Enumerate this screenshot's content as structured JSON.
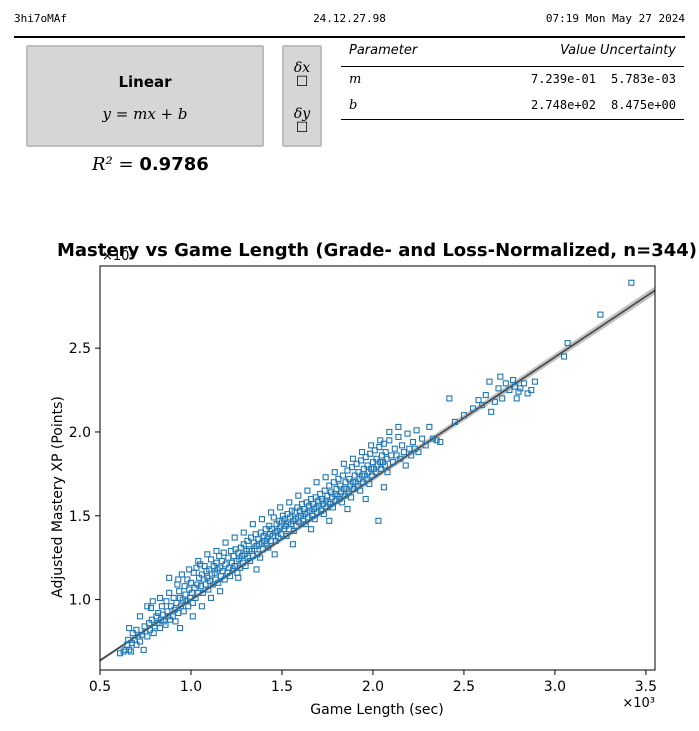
{
  "header": {
    "left": "3hi7oMAf",
    "center": "24.12.27.98",
    "right": "07:19 Mon May 27 2024"
  },
  "fit": {
    "model_name": "Linear",
    "equation": "y = mx + b",
    "uncertainty_toggles": [
      {
        "label": "δx",
        "checked": false
      },
      {
        "label": "δy",
        "checked": false
      }
    ],
    "r2_symbol": "R² =",
    "r2_value": "0.9786",
    "table": {
      "headers": [
        "Parameter",
        "Value",
        "Uncertainty"
      ],
      "rows": [
        {
          "param": "m",
          "value": "7.239e-01",
          "uncertainty": "5.783e-03"
        },
        {
          "param": "b",
          "value": "2.748e+02",
          "uncertainty": "8.475e+00"
        }
      ]
    }
  },
  "chart_data": {
    "type": "scatter",
    "title": "Mastery vs Game Length (Grade- and Loss-Normalized, n=344)",
    "xlabel": "Game Length (sec)",
    "ylabel": "Adjusted Mastery XP (Points)",
    "x_multiplier_label": "×10³",
    "y_multiplier_label": "×10³",
    "xlim": [
      500,
      3550
    ],
    "ylim": [
      580,
      2990
    ],
    "x_ticks": [
      500,
      1000,
      1500,
      2000,
      2500,
      3000,
      3500
    ],
    "x_tick_labels": [
      "0.5",
      "1.0",
      "1.5",
      "2.0",
      "2.5",
      "3.0",
      "3.5"
    ],
    "y_ticks": [
      1000,
      1500,
      2000,
      2500
    ],
    "y_tick_labels": [
      "1.0",
      "1.5",
      "2.0",
      "2.5"
    ],
    "grid": false,
    "marker": "open square",
    "point_color": "#1f77b4",
    "fit_line": {
      "slope": 0.7239,
      "intercept": 274.8,
      "color": "#444444",
      "band_color": "#9a9a9a"
    },
    "points": [
      [
        610,
        680
      ],
      [
        630,
        690
      ],
      [
        640,
        700
      ],
      [
        650,
        730
      ],
      [
        655,
        760
      ],
      [
        660,
        700
      ],
      [
        670,
        690
      ],
      [
        675,
        740
      ],
      [
        680,
        800
      ],
      [
        690,
        760
      ],
      [
        700,
        730
      ],
      [
        700,
        820
      ],
      [
        710,
        780
      ],
      [
        720,
        750
      ],
      [
        730,
        790
      ],
      [
        740,
        700
      ],
      [
        745,
        840
      ],
      [
        750,
        810
      ],
      [
        760,
        780
      ],
      [
        770,
        860
      ],
      [
        775,
        820
      ],
      [
        780,
        950
      ],
      [
        785,
        880
      ],
      [
        790,
        990
      ],
      [
        795,
        800
      ],
      [
        800,
        840
      ],
      [
        810,
        900
      ],
      [
        815,
        860
      ],
      [
        820,
        920
      ],
      [
        830,
        830
      ],
      [
        835,
        880
      ],
      [
        840,
        960
      ],
      [
        845,
        910
      ],
      [
        850,
        870
      ],
      [
        860,
        850
      ],
      [
        865,
        990
      ],
      [
        870,
        930
      ],
      [
        875,
        900
      ],
      [
        880,
        1130
      ],
      [
        885,
        880
      ],
      [
        890,
        960
      ],
      [
        900,
        900
      ],
      [
        905,
        1010
      ],
      [
        910,
        940
      ],
      [
        915,
        870
      ],
      [
        920,
        980
      ],
      [
        925,
        1090
      ],
      [
        930,
        920
      ],
      [
        935,
        1050
      ],
      [
        940,
        1010
      ],
      [
        945,
        960
      ],
      [
        950,
        1150
      ],
      [
        955,
        1000
      ],
      [
        960,
        930
      ],
      [
        965,
        1080
      ],
      [
        970,
        1030
      ],
      [
        975,
        990
      ],
      [
        980,
        1120
      ],
      [
        985,
        960
      ],
      [
        990,
        1060
      ],
      [
        995,
        1010
      ],
      [
        1000,
        1100
      ],
      [
        1005,
        1040
      ],
      [
        1010,
        980
      ],
      [
        1015,
        1160
      ],
      [
        1020,
        1070
      ],
      [
        1025,
        1010
      ],
      [
        1030,
        1190
      ],
      [
        1035,
        1090
      ],
      [
        1040,
        1040
      ],
      [
        1045,
        1130
      ],
      [
        1050,
        1210
      ],
      [
        1055,
        1080
      ],
      [
        1060,
        1150
      ],
      [
        1065,
        1040
      ],
      [
        1070,
        1120
      ],
      [
        1075,
        1200
      ],
      [
        1080,
        1090
      ],
      [
        1085,
        1170
      ],
      [
        1090,
        1130
      ],
      [
        1095,
        1060
      ],
      [
        1100,
        1180
      ],
      [
        1105,
        1110
      ],
      [
        1110,
        1240
      ],
      [
        1115,
        1150
      ],
      [
        1120,
        1090
      ],
      [
        1125,
        1200
      ],
      [
        1130,
        1160
      ],
      [
        1135,
        1120
      ],
      [
        1140,
        1220
      ],
      [
        1145,
        1180
      ],
      [
        1150,
        1100
      ],
      [
        1155,
        1260
      ],
      [
        1160,
        1190
      ],
      [
        1165,
        1140
      ],
      [
        1170,
        1230
      ],
      [
        1175,
        1170
      ],
      [
        1180,
        1280
      ],
      [
        1185,
        1120
      ],
      [
        1190,
        1210
      ],
      [
        1200,
        1160
      ],
      [
        1205,
        1250
      ],
      [
        1210,
        1190
      ],
      [
        1215,
        1140
      ],
      [
        1220,
        1290
      ],
      [
        1225,
        1220
      ],
      [
        1230,
        1180
      ],
      [
        1235,
        1260
      ],
      [
        1240,
        1200
      ],
      [
        1245,
        1300
      ],
      [
        1250,
        1230
      ],
      [
        1255,
        1160
      ],
      [
        1260,
        1280
      ],
      [
        1265,
        1240
      ],
      [
        1270,
        1190
      ],
      [
        1275,
        1310
      ],
      [
        1280,
        1260
      ],
      [
        1285,
        1220
      ],
      [
        1290,
        1330
      ],
      [
        1295,
        1270
      ],
      [
        1300,
        1200
      ],
      [
        1305,
        1290
      ],
      [
        1310,
        1350
      ],
      [
        1315,
        1250
      ],
      [
        1320,
        1300
      ],
      [
        1325,
        1230
      ],
      [
        1330,
        1370
      ],
      [
        1335,
        1290
      ],
      [
        1340,
        1260
      ],
      [
        1345,
        1340
      ],
      [
        1350,
        1300
      ],
      [
        1355,
        1390
      ],
      [
        1360,
        1320
      ],
      [
        1365,
        1270
      ],
      [
        1370,
        1360
      ],
      [
        1375,
        1330
      ],
      [
        1380,
        1250
      ],
      [
        1385,
        1400
      ],
      [
        1390,
        1340
      ],
      [
        1395,
        1300
      ],
      [
        1400,
        1380
      ],
      [
        1405,
        1350
      ],
      [
        1410,
        1420
      ],
      [
        1415,
        1330
      ],
      [
        1420,
        1370
      ],
      [
        1425,
        1310
      ],
      [
        1430,
        1440
      ],
      [
        1435,
        1390
      ],
      [
        1440,
        1350
      ],
      [
        1445,
        1420
      ],
      [
        1450,
        1380
      ],
      [
        1455,
        1490
      ],
      [
        1460,
        1400
      ],
      [
        1465,
        1350
      ],
      [
        1470,
        1450
      ],
      [
        1475,
        1410
      ],
      [
        1480,
        1370
      ],
      [
        1485,
        1470
      ],
      [
        1490,
        1430
      ],
      [
        1495,
        1390
      ],
      [
        1500,
        1460
      ],
      [
        1505,
        1500
      ],
      [
        1510,
        1420
      ],
      [
        1515,
        1480
      ],
      [
        1520,
        1440
      ],
      [
        1525,
        1380
      ],
      [
        1530,
        1510
      ],
      [
        1535,
        1460
      ],
      [
        1540,
        1420
      ],
      [
        1545,
        1490
      ],
      [
        1550,
        1450
      ],
      [
        1555,
        1530
      ],
      [
        1560,
        1470
      ],
      [
        1565,
        1410
      ],
      [
        1570,
        1520
      ],
      [
        1575,
        1480
      ],
      [
        1580,
        1440
      ],
      [
        1585,
        1550
      ],
      [
        1590,
        1490
      ],
      [
        1595,
        1460
      ],
      [
        1600,
        1530
      ],
      [
        1605,
        1500
      ],
      [
        1610,
        1570
      ],
      [
        1615,
        1470
      ],
      [
        1620,
        1540
      ],
      [
        1625,
        1510
      ],
      [
        1630,
        1450
      ],
      [
        1635,
        1580
      ],
      [
        1640,
        1520
      ],
      [
        1645,
        1490
      ],
      [
        1650,
        1560
      ],
      [
        1655,
        1530
      ],
      [
        1660,
        1600
      ],
      [
        1665,
        1500
      ],
      [
        1670,
        1570
      ],
      [
        1675,
        1540
      ],
      [
        1680,
        1480
      ],
      [
        1685,
        1610
      ],
      [
        1690,
        1550
      ],
      [
        1695,
        1520
      ],
      [
        1700,
        1590
      ],
      [
        1705,
        1560
      ],
      [
        1710,
        1630
      ],
      [
        1715,
        1530
      ],
      [
        1720,
        1600
      ],
      [
        1725,
        1570
      ],
      [
        1730,
        1510
      ],
      [
        1735,
        1650
      ],
      [
        1740,
        1590
      ],
      [
        1745,
        1550
      ],
      [
        1750,
        1620
      ],
      [
        1755,
        1580
      ],
      [
        1760,
        1680
      ],
      [
        1765,
        1570
      ],
      [
        1770,
        1640
      ],
      [
        1775,
        1610
      ],
      [
        1780,
        1550
      ],
      [
        1785,
        1700
      ],
      [
        1790,
        1630
      ],
      [
        1795,
        1590
      ],
      [
        1800,
        1660
      ],
      [
        1805,
        1620
      ],
      [
        1810,
        1720
      ],
      [
        1815,
        1600
      ],
      [
        1820,
        1680
      ],
      [
        1825,
        1640
      ],
      [
        1830,
        1580
      ],
      [
        1835,
        1740
      ],
      [
        1840,
        1660
      ],
      [
        1845,
        1620
      ],
      [
        1850,
        1700
      ],
      [
        1855,
        1660
      ],
      [
        1860,
        1770
      ],
      [
        1865,
        1640
      ],
      [
        1870,
        1720
      ],
      [
        1875,
        1680
      ],
      [
        1880,
        1610
      ],
      [
        1885,
        1790
      ],
      [
        1890,
        1700
      ],
      [
        1895,
        1660
      ],
      [
        1900,
        1740
      ],
      [
        1905,
        1700
      ],
      [
        1910,
        1810
      ],
      [
        1915,
        1680
      ],
      [
        1920,
        1760
      ],
      [
        1925,
        1720
      ],
      [
        1930,
        1650
      ],
      [
        1935,
        1830
      ],
      [
        1940,
        1740
      ],
      [
        1945,
        1700
      ],
      [
        1950,
        1780
      ],
      [
        1955,
        1740
      ],
      [
        1960,
        1850
      ],
      [
        1965,
        1720
      ],
      [
        1970,
        1800
      ],
      [
        1975,
        1760
      ],
      [
        1980,
        1690
      ],
      [
        1985,
        1870
      ],
      [
        1990,
        1780
      ],
      [
        1995,
        1740
      ],
      [
        2000,
        1820
      ],
      [
        2005,
        1780
      ],
      [
        2010,
        1890
      ],
      [
        2015,
        1760
      ],
      [
        2020,
        1840
      ],
      [
        2025,
        1800
      ],
      [
        2030,
        1470
      ],
      [
        2035,
        1910
      ],
      [
        2040,
        1820
      ],
      [
        2045,
        1780
      ],
      [
        2050,
        1860
      ],
      [
        2055,
        1820
      ],
      [
        2060,
        1930
      ],
      [
        2065,
        1800
      ],
      [
        2070,
        1880
      ],
      [
        2075,
        1840
      ],
      [
        2080,
        1760
      ],
      [
        2090,
        1950
      ],
      [
        2100,
        1860
      ],
      [
        2110,
        1820
      ],
      [
        2120,
        1900
      ],
      [
        2130,
        1860
      ],
      [
        2140,
        1970
      ],
      [
        2150,
        1840
      ],
      [
        2160,
        1920
      ],
      [
        2170,
        1880
      ],
      [
        2180,
        1800
      ],
      [
        2190,
        1990
      ],
      [
        2200,
        1900
      ],
      [
        2210,
        1860
      ],
      [
        2220,
        1940
      ],
      [
        2230,
        1900
      ],
      [
        2240,
        2010
      ],
      [
        2250,
        1880
      ],
      [
        2270,
        1960
      ],
      [
        2290,
        1920
      ],
      [
        2310,
        2030
      ],
      [
        2330,
        1960
      ],
      [
        2350,
        1950
      ],
      [
        2370,
        1940
      ],
      [
        2420,
        2200
      ],
      [
        2450,
        2060
      ],
      [
        2500,
        2100
      ],
      [
        2550,
        2140
      ],
      [
        2580,
        2190
      ],
      [
        2600,
        2160
      ],
      [
        2620,
        2220
      ],
      [
        2640,
        2300
      ],
      [
        2650,
        2120
      ],
      [
        2670,
        2180
      ],
      [
        2690,
        2260
      ],
      [
        2700,
        2330
      ],
      [
        2710,
        2200
      ],
      [
        2730,
        2290
      ],
      [
        2750,
        2250
      ],
      [
        2770,
        2310
      ],
      [
        2780,
        2270
      ],
      [
        2790,
        2200
      ],
      [
        2800,
        2240
      ],
      [
        2810,
        2260
      ],
      [
        2830,
        2290
      ],
      [
        2850,
        2230
      ],
      [
        2870,
        2250
      ],
      [
        2890,
        2300
      ],
      [
        3050,
        2450
      ],
      [
        3070,
        2530
      ],
      [
        3250,
        2700
      ],
      [
        3420,
        2890
      ],
      [
        660,
        830
      ],
      [
        720,
        900
      ],
      [
        760,
        960
      ],
      [
        830,
        1010
      ],
      [
        880,
        1040
      ],
      [
        930,
        1120
      ],
      [
        990,
        1180
      ],
      [
        1040,
        1230
      ],
      [
        1090,
        1270
      ],
      [
        1140,
        1290
      ],
      [
        1190,
        1340
      ],
      [
        1240,
        1370
      ],
      [
        1290,
        1400
      ],
      [
        1340,
        1450
      ],
      [
        1390,
        1480
      ],
      [
        1440,
        1520
      ],
      [
        1490,
        1550
      ],
      [
        1540,
        1580
      ],
      [
        1590,
        1620
      ],
      [
        1640,
        1650
      ],
      [
        1690,
        1700
      ],
      [
        1740,
        1730
      ],
      [
        1790,
        1760
      ],
      [
        1840,
        1810
      ],
      [
        1890,
        1840
      ],
      [
        1940,
        1880
      ],
      [
        1990,
        1920
      ],
      [
        2040,
        1950
      ],
      [
        2090,
        2000
      ],
      [
        2140,
        2030
      ],
      [
        1160,
        1050
      ],
      [
        1260,
        1130
      ],
      [
        1360,
        1180
      ],
      [
        1460,
        1270
      ],
      [
        1560,
        1330
      ],
      [
        1660,
        1420
      ],
      [
        1760,
        1470
      ],
      [
        1860,
        1540
      ],
      [
        1960,
        1600
      ],
      [
        2060,
        1670
      ],
      [
        940,
        830
      ],
      [
        1010,
        900
      ],
      [
        1060,
        960
      ],
      [
        1110,
        1010
      ]
    ]
  }
}
